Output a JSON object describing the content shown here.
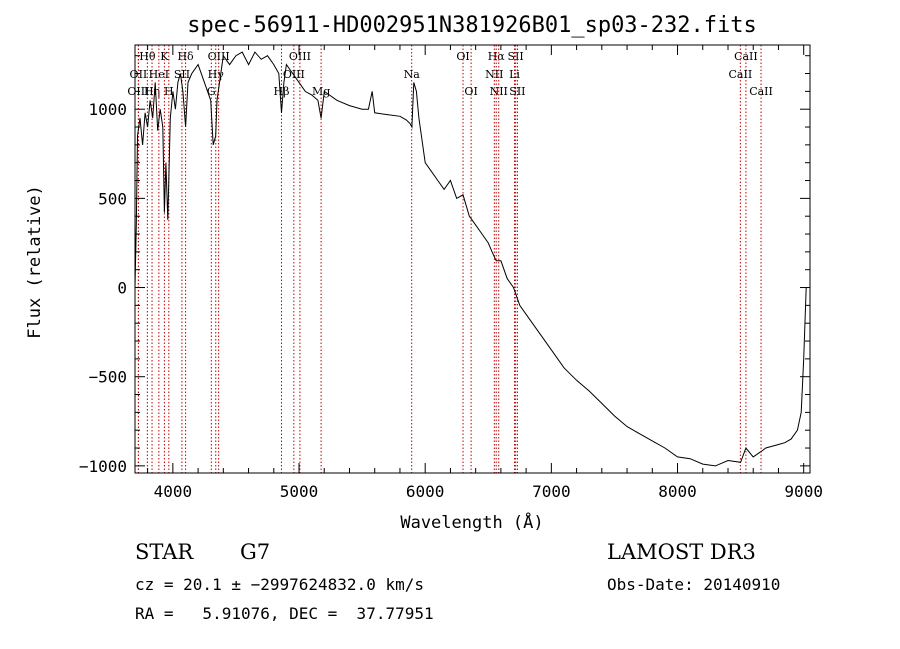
{
  "chart_data": {
    "type": "line",
    "title": "spec-56911-HD002951N381926B01_sp03-232.fits",
    "xlabel": "Wavelength (Å)",
    "ylabel": "Flux (relative)",
    "xlim": [
      3700,
      9050
    ],
    "ylim": [
      -1040,
      1360
    ],
    "x_ticks": [
      4000,
      5000,
      6000,
      7000,
      8000,
      9000
    ],
    "y_ticks": [
      -1000,
      -500,
      0,
      500,
      1000
    ],
    "x_tick_labels": [
      "4000",
      "5000",
      "6000",
      "7000",
      "8000",
      "9000"
    ],
    "y_tick_labels": [
      "−1000",
      "−500",
      "0",
      "500",
      "1000"
    ],
    "series": [
      {
        "x": [
          3700,
          3710,
          3720,
          3740,
          3760,
          3780,
          3800,
          3820,
          3840,
          3860,
          3880,
          3900,
          3920,
          3933,
          3945,
          3960,
          3968,
          3980,
          4000,
          4020,
          4040,
          4060,
          4080,
          4101,
          4120,
          4150,
          4200,
          4250,
          4300,
          4320,
          4340,
          4350,
          4380,
          4400,
          4450,
          4500,
          4550,
          4600,
          4650,
          4700,
          4750,
          4800,
          4840,
          4861,
          4880,
          4900,
          4950,
          5000,
          5050,
          5100,
          5150,
          5175,
          5200,
          5300,
          5400,
          5500,
          5550,
          5580,
          5600,
          5700,
          5800,
          5850,
          5880,
          5895,
          5910,
          5930,
          5950,
          5980,
          6000,
          6050,
          6100,
          6150,
          6200,
          6250,
          6300,
          6350,
          6400,
          6450,
          6500,
          6530,
          6563,
          6600,
          6650,
          6700,
          6750,
          6800,
          6900,
          7000,
          7100,
          7200,
          7300,
          7400,
          7500,
          7600,
          7700,
          7800,
          7900,
          8000,
          8100,
          8200,
          8300,
          8400,
          8500,
          8542,
          8600,
          8662,
          8700,
          8800,
          8850,
          8900,
          8950,
          8980,
          9000,
          9020
        ],
        "y": [
          0,
          350,
          850,
          950,
          800,
          980,
          900,
          1050,
          950,
          1150,
          880,
          1000,
          900,
          420,
          700,
          380,
          600,
          950,
          1100,
          1000,
          1150,
          1200,
          1100,
          900,
          1150,
          1200,
          1250,
          1150,
          1050,
          800,
          850,
          1050,
          1200,
          1300,
          1250,
          1300,
          1320,
          1250,
          1320,
          1280,
          1300,
          1250,
          1200,
          980,
          1150,
          1250,
          1200,
          1150,
          1100,
          1080,
          1050,
          950,
          1100,
          1050,
          1020,
          1000,
          1000,
          1100,
          980,
          970,
          960,
          940,
          920,
          900,
          1150,
          1100,
          950,
          800,
          700,
          650,
          600,
          550,
          600,
          500,
          520,
          400,
          350,
          300,
          250,
          200,
          150,
          150,
          50,
          0,
          -100,
          -150,
          -250,
          -350,
          -450,
          -520,
          -580,
          -650,
          -720,
          -780,
          -820,
          -860,
          -900,
          -950,
          -960,
          -990,
          -1000,
          -970,
          -980,
          -900,
          -950,
          -920,
          -900,
          -880,
          -870,
          -850,
          -800,
          -700,
          -400,
          0
        ]
      }
    ],
    "lines": [
      {
        "name": "Hθ",
        "wl": 3798,
        "row": 1
      },
      {
        "name": "OII",
        "wl": 3727,
        "row": 2
      },
      {
        "name": "OIII",
        "wl": 3727,
        "row": 3
      },
      {
        "name": "Hη",
        "wl": 3835,
        "row": 3
      },
      {
        "name": "HeI",
        "wl": 3889,
        "row": 2
      },
      {
        "name": "K",
        "wl": 3933,
        "row": 1
      },
      {
        "name": "H",
        "wl": 3968,
        "row": 3
      },
      {
        "name": "Hδ",
        "wl": 4101,
        "row": 1
      },
      {
        "name": "SII",
        "wl": 4072,
        "row": 2
      },
      {
        "name": "OIII",
        "wl": 4363,
        "row": 1
      },
      {
        "name": "Hγ",
        "wl": 4340,
        "row": 2
      },
      {
        "name": "G",
        "wl": 4305,
        "row": 3
      },
      {
        "name": "Hβ",
        "wl": 4861,
        "row": 3
      },
      {
        "name": "OIII",
        "wl": 5007,
        "row": 1
      },
      {
        "name": "OIII",
        "wl": 4959,
        "row": 2
      },
      {
        "name": "Mg",
        "wl": 5175,
        "row": 3
      },
      {
        "name": "Na",
        "wl": 5893,
        "row": 2
      },
      {
        "name": "OI",
        "wl": 6300,
        "row": 1
      },
      {
        "name": "OI",
        "wl": 6364,
        "row": 3
      },
      {
        "name": "Hα",
        "wl": 6563,
        "row": 1
      },
      {
        "name": "NII",
        "wl": 6548,
        "row": 2
      },
      {
        "name": "NII",
        "wl": 6583,
        "row": 3
      },
      {
        "name": "SII",
        "wl": 6717,
        "row": 1
      },
      {
        "name": "Li",
        "wl": 6708,
        "row": 2
      },
      {
        "name": "SII",
        "wl": 6731,
        "row": 3
      },
      {
        "name": "CaII",
        "wl": 8542,
        "row": 1
      },
      {
        "name": "CaII",
        "wl": 8498,
        "row": 2
      },
      {
        "name": "CaII",
        "wl": 8662,
        "row": 3
      }
    ]
  },
  "info": {
    "class": "STAR",
    "subclass": "G7",
    "cz": "cz = 20.1 ± −2997624832.0 km/s",
    "radec": "RA =   5.91076, DEC =  37.77951",
    "survey": "LAMOST DR3",
    "obs_date": "Obs-Date: 20140910"
  }
}
